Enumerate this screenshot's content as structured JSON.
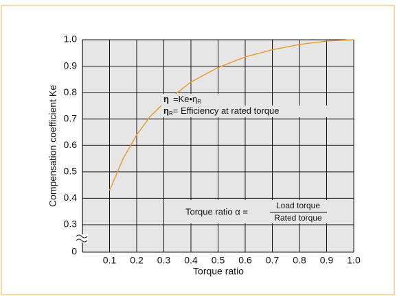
{
  "chart_data": {
    "type": "line",
    "x_label": "Torque ratio",
    "y_label": "Compensation coefficient  Ke",
    "x": [
      0.1,
      0.15,
      0.2,
      0.25,
      0.3,
      0.35,
      0.4,
      0.5,
      0.6,
      0.7,
      0.8,
      0.9,
      1.0
    ],
    "series": [
      {
        "color": "#e89a30",
        "values": [
          0.43,
          0.55,
          0.64,
          0.71,
          0.76,
          0.8,
          0.84,
          0.895,
          0.935,
          0.962,
          0.982,
          0.995,
          1.0
        ]
      }
    ],
    "xlim": [
      0,
      1.0
    ],
    "xticks": [
      0.1,
      0.2,
      0.3,
      0.4,
      0.5,
      0.6,
      0.7,
      0.8,
      0.9,
      {
        "value": 1,
        "label": "1.0"
      }
    ],
    "ylim": [
      0,
      1.0
    ],
    "axis_break": [
      0,
      0.3
    ],
    "yticks": [
      0,
      0.3,
      0.4,
      0.5,
      0.6,
      0.7,
      0.8,
      0.9,
      {
        "value": 1,
        "label": "1.0"
      }
    ],
    "grid": true,
    "annotations": [
      {
        "parts": [
          "η",
          "=Ke•η",
          "R"
        ]
      },
      {
        "parts": [
          "η",
          "R",
          "= Efficiency at rated torque"
        ]
      },
      {
        "parts": [
          "Torque ratio α =",
          "Load torque",
          "Rated torque"
        ]
      }
    ]
  }
}
